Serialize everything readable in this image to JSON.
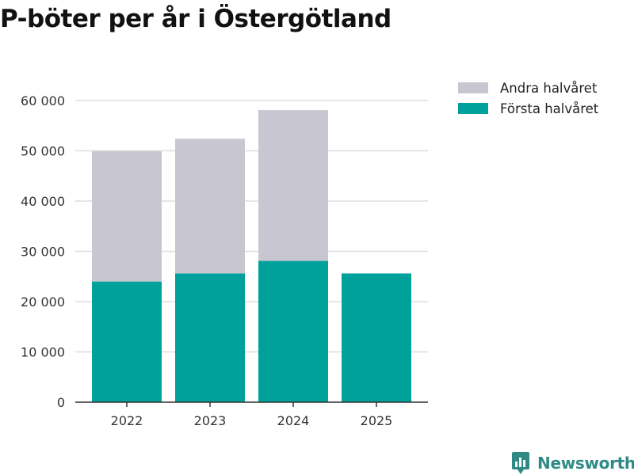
{
  "title": "P-böter per år i Östergötland",
  "brand": {
    "name": "Newsworthy"
  },
  "colors": {
    "forsta": "#00a19a",
    "andra": "#c8c7d1",
    "grid": "#dddddd",
    "axis": "#333333"
  },
  "chart_data": {
    "type": "bar",
    "stacked": true,
    "title": "P-böter per år i Östergötland",
    "categories": [
      "2022",
      "2023",
      "2024",
      "2025"
    ],
    "series": [
      {
        "name": "Första halvåret",
        "values": [
          24000,
          25600,
          28100,
          25600
        ]
      },
      {
        "name": "Andra halvåret",
        "values": [
          25900,
          26800,
          30000,
          0
        ]
      }
    ],
    "ylim": [
      0,
      60000
    ],
    "yticks": [
      0,
      10000,
      20000,
      30000,
      40000,
      50000,
      60000
    ],
    "ytick_labels": [
      "0",
      "10 000",
      "20 000",
      "30 000",
      "40 000",
      "50 000",
      "60 000"
    ],
    "legend": [
      "Andra halvåret",
      "Första halvåret"
    ],
    "legend_position": "top-right",
    "grid": true
  }
}
